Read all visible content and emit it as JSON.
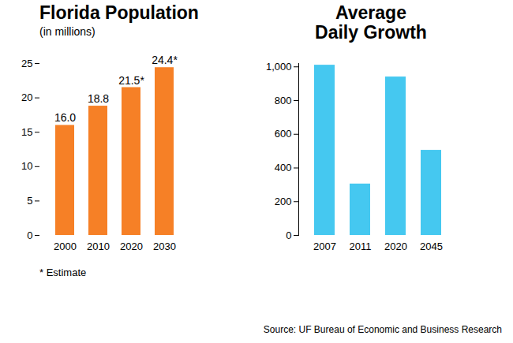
{
  "chart_data": [
    {
      "type": "bar",
      "title": "Florida Population",
      "subtitle": "(in millions)",
      "categories": [
        "2000",
        "2010",
        "2020",
        "2030"
      ],
      "values": [
        16.0,
        18.8,
        21.5,
        24.4
      ],
      "value_labels": [
        "16.0",
        "18.8",
        "21.5*",
        "24.4*"
      ],
      "data_labels": true,
      "color": "#f68026",
      "ylim": [
        0,
        25
      ],
      "yticks": [
        0,
        5,
        10,
        15,
        20,
        25
      ],
      "grid": false,
      "annotations": [
        "* Estimate"
      ]
    },
    {
      "type": "bar",
      "title": "Average Daily Growth",
      "categories": [
        "2007",
        "2011",
        "2020",
        "2045"
      ],
      "values": [
        1010,
        305,
        940,
        505
      ],
      "data_labels": false,
      "color": "#45c8f0",
      "ylim": [
        0,
        1020
      ],
      "yticks": [
        0,
        200,
        400,
        600,
        800,
        {
          "value": 1000,
          "label": "1,000"
        }
      ],
      "grid": false
    }
  ],
  "caption": "Source: UF Bureau of Economic and Business Research"
}
